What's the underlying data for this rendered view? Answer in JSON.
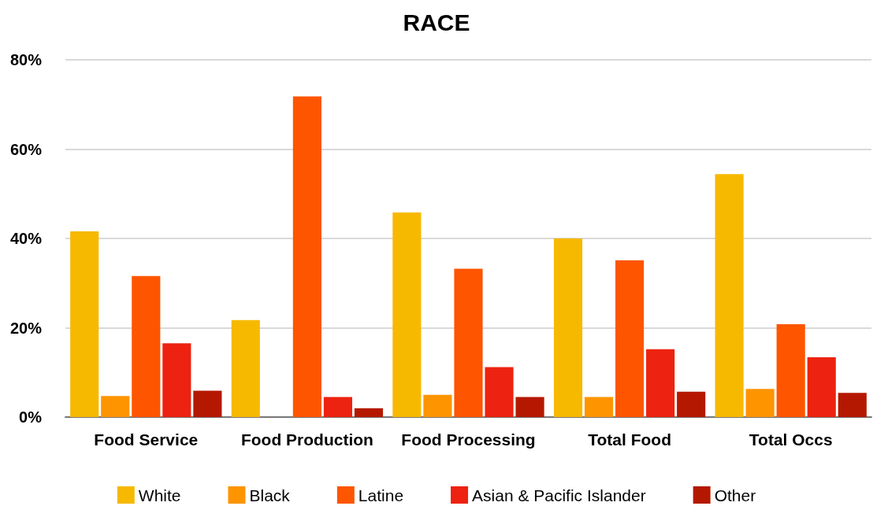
{
  "chart_data": {
    "type": "bar",
    "title": "RACE",
    "categories": [
      "Food Service",
      "Food Production",
      "Food Processing",
      "Total Food",
      "Total Occs"
    ],
    "series": [
      {
        "name": "White",
        "color": "#f7b900",
        "values": [
          41.6,
          21.7,
          45.8,
          40.0,
          54.4
        ]
      },
      {
        "name": "Black",
        "color": "#fe9400",
        "values": [
          4.7,
          0,
          5.0,
          4.5,
          6.3
        ]
      },
      {
        "name": "Latine",
        "color": "#fe5500",
        "values": [
          31.6,
          71.8,
          33.2,
          35.1,
          20.8
        ]
      },
      {
        "name": "Asian & Pacific Islander",
        "color": "#ed2210",
        "values": [
          16.5,
          4.5,
          11.2,
          15.2,
          13.4
        ]
      },
      {
        "name": "Other",
        "color": "#b51800",
        "values": [
          5.9,
          2.0,
          4.5,
          5.7,
          5.4
        ]
      }
    ],
    "ylim": [
      0,
      80
    ],
    "yticks": [
      {
        "value": 0,
        "label": "0%"
      },
      {
        "value": 20,
        "label": "20%"
      },
      {
        "value": 40,
        "label": "40%"
      },
      {
        "value": 60,
        "label": "60%"
      },
      {
        "value": 80,
        "label": "80%"
      }
    ],
    "grid": "y",
    "legend": "bottom"
  }
}
